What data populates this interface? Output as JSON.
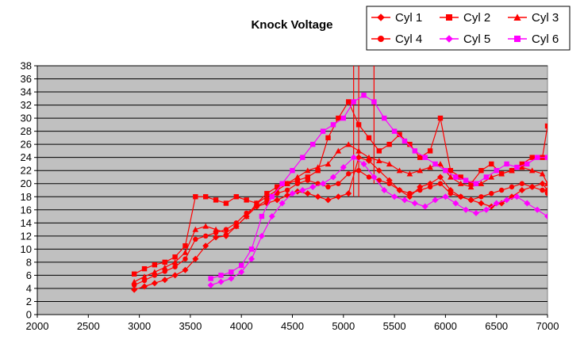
{
  "chart_data": {
    "type": "line",
    "title": "Knock Voltage",
    "xlabel": "",
    "ylabel": "",
    "xlim": [
      2000,
      7000
    ],
    "ylim": [
      0,
      38
    ],
    "x_ticks": [
      2000,
      2500,
      3000,
      3500,
      4000,
      4500,
      5000,
      5500,
      6000,
      6500,
      7000
    ],
    "y_ticks": [
      0,
      2,
      4,
      6,
      8,
      10,
      12,
      14,
      16,
      18,
      20,
      22,
      24,
      26,
      28,
      30,
      32,
      34,
      36,
      38
    ],
    "grid": "horizontal",
    "legend_position": "top-right",
    "plot_background": "#c0c0c0",
    "series": [
      {
        "name": "Cyl 1",
        "color": "#ff0000",
        "marker": "diamond",
        "x": [
          2950,
          3050,
          3150,
          3250,
          3350,
          3450,
          3550,
          3650,
          3750,
          3850,
          3950,
          4050,
          4150,
          4250,
          4350,
          4450,
          4550,
          4650,
          4750,
          4850,
          4950,
          5050,
          5150,
          5250,
          5350,
          5450,
          5550,
          5650,
          5750,
          5850,
          5950,
          6050,
          6150,
          6250,
          6350,
          6450,
          6550,
          6650,
          6750,
          6850,
          6950,
          7000
        ],
        "y": [
          3.8,
          4.3,
          4.8,
          5.3,
          6.0,
          6.8,
          8.5,
          10.5,
          11.8,
          12.0,
          13.5,
          15.0,
          16.5,
          17.0,
          17.5,
          18.2,
          18.8,
          18.5,
          18.0,
          17.5,
          18.0,
          18.5,
          24.0,
          23.5,
          22.0,
          20.5,
          19.0,
          18.0,
          19.5,
          20.0,
          21.0,
          19.0,
          18.0,
          17.5,
          17.0,
          16.5,
          17.0,
          18.0,
          19.0,
          19.5,
          20.0,
          19.0
        ]
      },
      {
        "name": "Cyl 2",
        "color": "#ff0000",
        "marker": "square",
        "x": [
          2950,
          3050,
          3150,
          3250,
          3350,
          3450,
          3550,
          3650,
          3750,
          3850,
          3950,
          4050,
          4150,
          4250,
          4350,
          4450,
          4550,
          4650,
          4750,
          4850,
          4950,
          5050,
          5150,
          5250,
          5350,
          5450,
          5550,
          5650,
          5750,
          5850,
          5950,
          6050,
          6150,
          6250,
          6350,
          6450,
          6550,
          6650,
          6750,
          6850,
          6950,
          7000
        ],
        "y": [
          6.2,
          7.0,
          7.6,
          8.0,
          8.8,
          10.5,
          18.0,
          18.0,
          17.5,
          17.0,
          18.0,
          17.5,
          17.0,
          18.5,
          19.5,
          20.0,
          20.5,
          21.0,
          22.0,
          27.0,
          30.0,
          32.5,
          29.0,
          27.0,
          25.0,
          26.0,
          27.5,
          26.0,
          24.0,
          25.0,
          30.0,
          22.0,
          21.0,
          20.0,
          22.0,
          23.0,
          21.5,
          22.0,
          23.0,
          24.0,
          24.0,
          28.8
        ]
      },
      {
        "name": "Cyl 3",
        "color": "#ff0000",
        "marker": "triangle",
        "x": [
          2950,
          3050,
          3150,
          3250,
          3350,
          3450,
          3550,
          3650,
          3750,
          3850,
          3950,
          4050,
          4150,
          4250,
          4350,
          4450,
          4550,
          4650,
          4750,
          4850,
          4950,
          5050,
          5150,
          5250,
          5350,
          5450,
          5550,
          5650,
          5750,
          5850,
          5950,
          6050,
          6150,
          6250,
          6350,
          6450,
          6550,
          6650,
          6750,
          6850,
          6950,
          7000
        ],
        "y": [
          5.0,
          5.8,
          6.5,
          7.2,
          8.0,
          9.5,
          13.0,
          13.5,
          13.0,
          12.5,
          13.5,
          15.0,
          17.0,
          18.0,
          19.0,
          20.0,
          21.0,
          22.0,
          22.5,
          23.0,
          25.0,
          26.0,
          25.0,
          24.0,
          23.5,
          23.0,
          22.0,
          21.5,
          22.0,
          22.5,
          23.0,
          21.0,
          20.0,
          19.5,
          20.0,
          21.0,
          21.5,
          22.0,
          22.5,
          22.0,
          21.5,
          20.0
        ]
      },
      {
        "name": "Cyl 4",
        "color": "#ff0000",
        "marker": "circle",
        "x": [
          2950,
          3050,
          3150,
          3250,
          3350,
          3450,
          3550,
          3650,
          3750,
          3850,
          3950,
          4050,
          4150,
          4250,
          4350,
          4450,
          4550,
          4650,
          4750,
          4850,
          4950,
          5050,
          5150,
          5250,
          5350,
          5450,
          5550,
          5650,
          5750,
          5850,
          5950,
          6050,
          6150,
          6250,
          6350,
          6450,
          6550,
          6650,
          6750,
          6850,
          6950,
          7000
        ],
        "y": [
          4.5,
          5.2,
          6.0,
          6.6,
          7.3,
          8.5,
          11.5,
          12.0,
          12.5,
          13.0,
          14.0,
          15.5,
          16.5,
          17.5,
          18.5,
          19.0,
          20.0,
          20.5,
          20.0,
          19.5,
          20.0,
          21.5,
          22.0,
          21.0,
          20.5,
          20.0,
          19.0,
          18.5,
          19.0,
          19.5,
          20.0,
          18.5,
          18.0,
          17.5,
          18.0,
          18.5,
          19.0,
          19.5,
          20.0,
          19.5,
          19.0,
          18.5
        ]
      },
      {
        "name": "Cyl 5",
        "color": "#ff00ff",
        "marker": "diamond",
        "x": [
          3700,
          3800,
          3900,
          4000,
          4100,
          4200,
          4300,
          4400,
          4500,
          4600,
          4700,
          4800,
          4900,
          5000,
          5100,
          5200,
          5300,
          5400,
          5500,
          5600,
          5700,
          5800,
          5900,
          6000,
          6100,
          6200,
          6300,
          6400,
          6500,
          6600,
          6700,
          6800,
          6900,
          7000
        ],
        "y": [
          4.5,
          5.0,
          5.5,
          6.5,
          8.5,
          12.0,
          15.0,
          17.0,
          18.5,
          19.0,
          19.5,
          20.0,
          21.0,
          22.5,
          24.0,
          23.0,
          21.0,
          19.0,
          18.0,
          17.5,
          17.0,
          16.5,
          17.5,
          18.0,
          17.0,
          16.0,
          15.5,
          16.0,
          17.0,
          17.5,
          18.0,
          17.0,
          16.0,
          15.0
        ]
      },
      {
        "name": "Cyl 6",
        "color": "#ff00ff",
        "marker": "square",
        "x": [
          3700,
          3800,
          3900,
          4000,
          4100,
          4200,
          4300,
          4400,
          4500,
          4600,
          4700,
          4800,
          4900,
          5000,
          5100,
          5200,
          5300,
          5400,
          5500,
          5600,
          5700,
          5800,
          5900,
          6000,
          6100,
          6200,
          6300,
          6400,
          6500,
          6600,
          6700,
          6800,
          6900,
          7000
        ],
        "y": [
          5.5,
          6.0,
          6.5,
          7.5,
          10.0,
          15.0,
          18.0,
          20.0,
          22.0,
          24.0,
          26.0,
          28.0,
          29.0,
          30.0,
          32.5,
          33.5,
          32.5,
          30.0,
          28.0,
          26.5,
          25.0,
          24.0,
          23.0,
          22.0,
          21.0,
          20.5,
          20.0,
          21.0,
          22.0,
          23.0,
          22.5,
          23.0,
          24.0,
          24.0
        ]
      }
    ],
    "spikes": {
      "x": [
        5100,
        5150,
        5300
      ],
      "y_from": [
        18,
        18,
        20
      ],
      "y_to": [
        38,
        38,
        38
      ],
      "color": "#ff0000"
    }
  }
}
